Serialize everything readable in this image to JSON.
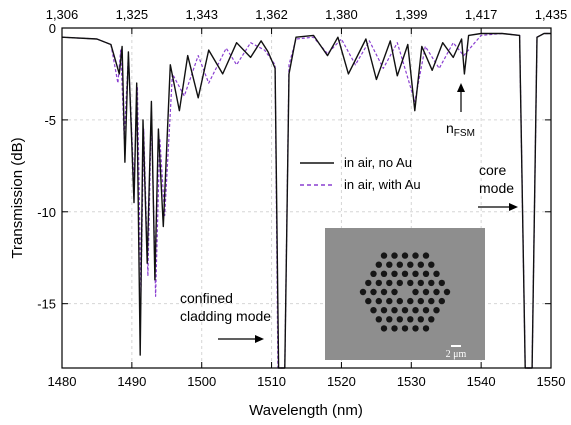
{
  "chart_data": {
    "type": "line",
    "xlabel": "Wavelength (nm)",
    "ylabel": "Transmission (dB)",
    "xlim": [
      1480,
      1550
    ],
    "ylim": [
      -18.5,
      0
    ],
    "x_ticks": [
      1480,
      1490,
      1500,
      1510,
      1520,
      1530,
      1540,
      1550
    ],
    "y_ticks": [
      0,
      -5,
      -10,
      -15
    ],
    "top_axis_ticks": [
      "1,306",
      "1,325",
      "1,343",
      "1,362",
      "1,380",
      "1,399",
      "1,417",
      "1,435"
    ],
    "grid": true,
    "legend_placement": "center-right",
    "colors": {
      "no_au": "#111111",
      "with_au": "#8a3fd1"
    },
    "series": [
      {
        "name": "in air, no Au",
        "style": "solid",
        "x": [
          1480,
          1485,
          1487,
          1488.2,
          1488.6,
          1489.0,
          1489.5,
          1490.3,
          1490.7,
          1491.2,
          1491.6,
          1492.2,
          1492.8,
          1493.3,
          1493.8,
          1494.5,
          1495.5,
          1496.8,
          1498,
          1499.5,
          1501,
          1503,
          1505,
          1507,
          1508.5,
          1509.5,
          1510.5,
          1511.0,
          1511.4,
          1511.9,
          1512.5,
          1513.5,
          1516,
          1518,
          1519.5,
          1521,
          1523.5,
          1525,
          1527,
          1528,
          1529.5,
          1530.5,
          1531.5,
          1533,
          1534.5,
          1536,
          1537.2,
          1537.6,
          1538.2,
          1540,
          1543,
          1545.5,
          1546.3,
          1546.8,
          1547.3,
          1548,
          1549,
          1550
        ],
        "y": [
          -0.5,
          -0.6,
          -0.9,
          -2.5,
          -1.0,
          -7.3,
          -1.3,
          -9.5,
          -3.0,
          -17.8,
          -5.0,
          -12.8,
          -4.0,
          -13.7,
          -5.5,
          -10.8,
          -2.0,
          -4.5,
          -1.5,
          -3.8,
          -1.2,
          -2.5,
          -0.8,
          -1.6,
          -0.7,
          -1.3,
          -2.2,
          -18.5,
          -18.5,
          -18.5,
          -2.5,
          -0.5,
          -0.4,
          -1.5,
          -0.5,
          -2.5,
          -0.6,
          -2.8,
          -0.7,
          -2.6,
          -0.9,
          -4.5,
          -1.0,
          -2.3,
          -0.8,
          -1.6,
          -0.6,
          -2.5,
          -0.4,
          -0.3,
          -0.3,
          -0.4,
          -18.5,
          -18.5,
          -18.5,
          -0.5,
          -0.3,
          -0.3
        ]
      },
      {
        "name": "in air, with Au",
        "style": "dashed",
        "x": [
          1480,
          1485,
          1487,
          1488.0,
          1488.4,
          1488.9,
          1489.5,
          1490.3,
          1490.8,
          1491.3,
          1491.7,
          1492.3,
          1492.8,
          1493.4,
          1494.0,
          1494.7,
          1495.8,
          1497.5,
          1499.5,
          1501,
          1503.5,
          1505,
          1507,
          1509,
          1510.5,
          1510.9,
          1511.4,
          1511.9,
          1512.5,
          1513.5,
          1516,
          1518,
          1520,
          1522,
          1524,
          1526,
          1528,
          1530.5,
          1532,
          1534,
          1536,
          1537.5,
          1540,
          1543,
          1545.5,
          1546.3,
          1546.8,
          1547.3,
          1548,
          1549,
          1550
        ],
        "y": [
          -0.5,
          -0.6,
          -0.9,
          -3.0,
          -1.2,
          -6.0,
          -1.5,
          -8.5,
          -3.2,
          -14.5,
          -5.5,
          -13.5,
          -4.5,
          -14.6,
          -6.0,
          -10.2,
          -2.5,
          -3.7,
          -1.5,
          -3.0,
          -1.1,
          -2.0,
          -0.8,
          -1.2,
          -2.0,
          -18.5,
          -18.5,
          -18.5,
          -2.0,
          -0.6,
          -0.5,
          -1.4,
          -0.6,
          -2.0,
          -0.7,
          -2.2,
          -0.8,
          -4.0,
          -1.0,
          -2.2,
          -0.8,
          -1.5,
          -0.4,
          -0.3,
          -0.4,
          -18.5,
          -18.5,
          -18.5,
          -0.5,
          -0.3,
          -0.3
        ]
      }
    ],
    "annotations": {
      "n_fsm": {
        "main": "n",
        "sub": "FSM"
      },
      "core_line1": "core",
      "core_line2": "mode",
      "cladding_line1": "confined",
      "cladding_line2": "cladding mode"
    },
    "inset": {
      "scale_bar_label": "2 μm"
    }
  }
}
